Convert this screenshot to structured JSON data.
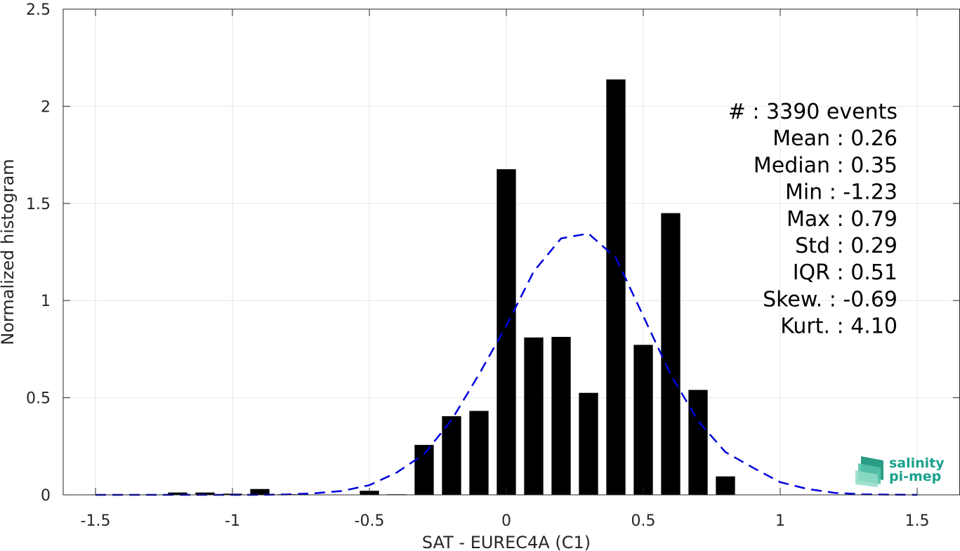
{
  "chart_data": {
    "type": "bar",
    "xlabel": "SAT - EUREC4A (C1)",
    "ylabel": "Normalized histogram",
    "xlim": [
      -1.5,
      1.5
    ],
    "ylim": [
      0,
      2.5
    ],
    "xticks": [
      -1.5,
      -1,
      -0.5,
      0,
      0.5,
      1,
      1.5
    ],
    "xtick_labels": [
      "-1.5",
      "-1",
      "-0.5",
      "0",
      "0.5",
      "1",
      "1.5"
    ],
    "yticks": [
      0,
      0.5,
      1,
      1.5,
      2,
      2.5
    ],
    "ytick_labels": [
      "0",
      "0.5",
      "1",
      "1.5",
      "2",
      "2.5"
    ],
    "grid": true,
    "bar_color": "#000000",
    "bar_width": 0.07,
    "bars": {
      "x": [
        -1.2,
        -1.1,
        -1.0,
        -0.9,
        -0.8,
        -0.5,
        -0.4,
        -0.3,
        -0.2,
        -0.1,
        0.0,
        0.1,
        0.2,
        0.3,
        0.4,
        0.5,
        0.6,
        0.7,
        0.8
      ],
      "values": [
        0.012,
        0.012,
        0.006,
        0.03,
        0.003,
        0.021,
        0.003,
        0.257,
        0.405,
        0.432,
        1.676,
        0.81,
        0.813,
        0.525,
        2.138,
        0.772,
        1.45,
        0.54,
        0.095
      ]
    },
    "fit_curve": {
      "style": "dashed",
      "color": "#0000dd",
      "x": [
        -1.5,
        -1.4,
        -1.3,
        -1.2,
        -1.1,
        -1.0,
        -0.9,
        -0.8,
        -0.7,
        -0.6,
        -0.5,
        -0.4,
        -0.3,
        -0.2,
        -0.1,
        0.0,
        0.1,
        0.2,
        0.3,
        0.4,
        0.5,
        0.6,
        0.7,
        0.8,
        0.9,
        1.0,
        1.1,
        1.2,
        1.3,
        1.4,
        1.5
      ],
      "y": [
        0.0,
        0.0,
        0.0,
        0.0,
        0.0,
        0.0,
        0.0,
        0.002,
        0.008,
        0.02,
        0.05,
        0.115,
        0.21,
        0.385,
        0.62,
        0.87,
        1.15,
        1.32,
        1.345,
        1.22,
        0.92,
        0.62,
        0.38,
        0.22,
        0.14,
        0.065,
        0.03,
        0.01,
        0.003,
        0.001,
        0.0
      ]
    },
    "annotations": [
      "#  : 3390 events",
      "Mean : 0.26",
      "Median : 0.35",
      "Min : -1.23",
      "Max : 0.79",
      "Std : 0.29",
      "IQR : 0.51",
      "Skew. : -0.69",
      "Kurt. : 4.10"
    ]
  },
  "logo": {
    "line1": "salinity",
    "line2": "pi-mep",
    "color": "#1aa18c"
  }
}
